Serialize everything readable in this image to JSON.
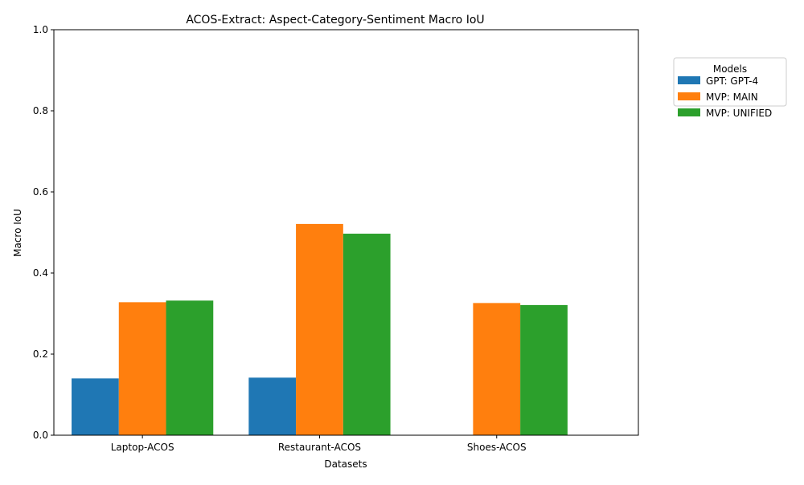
{
  "chart_data": {
    "type": "bar",
    "title": "ACOS-Extract: Aspect-Category-Sentiment Macro IoU",
    "xlabel": "Datasets",
    "ylabel": "Macro IoU",
    "ylim": [
      0,
      1.0
    ],
    "yticks": [
      0.0,
      0.2,
      0.4,
      0.6,
      0.8,
      1.0
    ],
    "ytick_labels": [
      "0.0",
      "0.2",
      "0.4",
      "0.6",
      "0.8",
      "1.0"
    ],
    "categories": [
      "Laptop-ACOS",
      "Restaurant-ACOS",
      "Shoes-ACOS"
    ],
    "series": [
      {
        "name": "GPT: GPT-4",
        "color": "#1f77b4",
        "values": [
          0.14,
          0.142,
          null
        ]
      },
      {
        "name": "MVP: MAIN",
        "color": "#ff7f0e",
        "values": [
          0.328,
          0.521,
          0.326
        ]
      },
      {
        "name": "MVP: UNIFIED",
        "color": "#2ca02c",
        "values": [
          0.332,
          0.497,
          0.321
        ]
      }
    ],
    "legend": {
      "title": "Models",
      "placement": "outside-upper-right"
    },
    "grid": false
  }
}
